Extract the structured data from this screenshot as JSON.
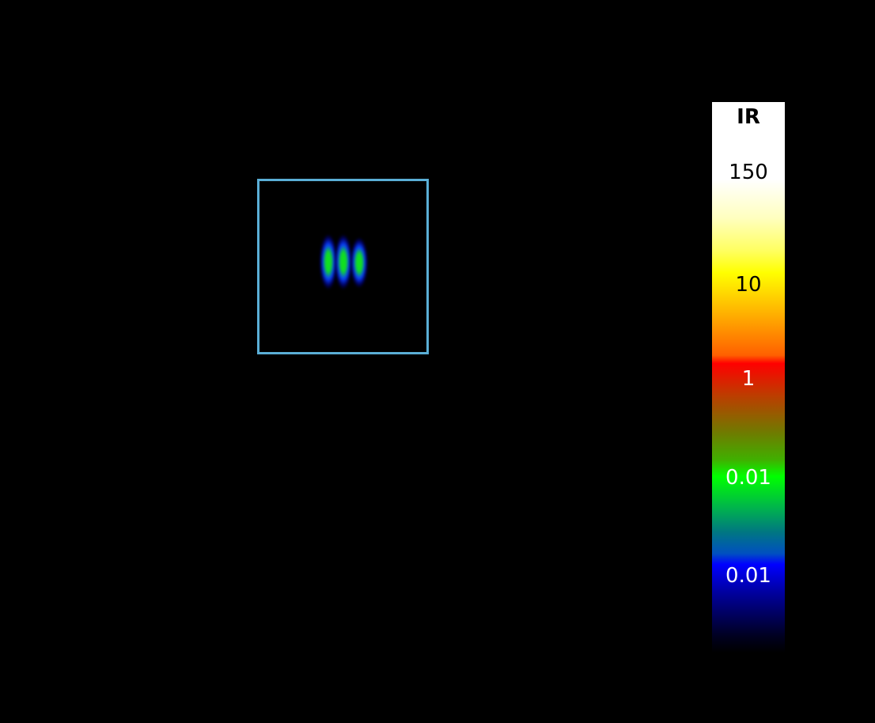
{
  "colorbar": {
    "title": "IR",
    "ticks": [
      {
        "label": "150",
        "color": "#000000"
      },
      {
        "label": "10",
        "color": "#000000"
      },
      {
        "label": "1",
        "color": "#ffffff"
      },
      {
        "label": "0.01",
        "color": "#ffffff"
      },
      {
        "label": "0.01",
        "color": "#ffffff"
      }
    ],
    "colormap": [
      "#000000",
      "#000080",
      "#0000ff",
      "#008080",
      "#00ff00",
      "#808000",
      "#ff0000",
      "#ff8000",
      "#ffff00",
      "#ffffff"
    ]
  },
  "roi": {
    "color": "#5aaed6"
  },
  "signal": {
    "count": 3,
    "colors": [
      "#10e020",
      "#0a40ff"
    ]
  }
}
